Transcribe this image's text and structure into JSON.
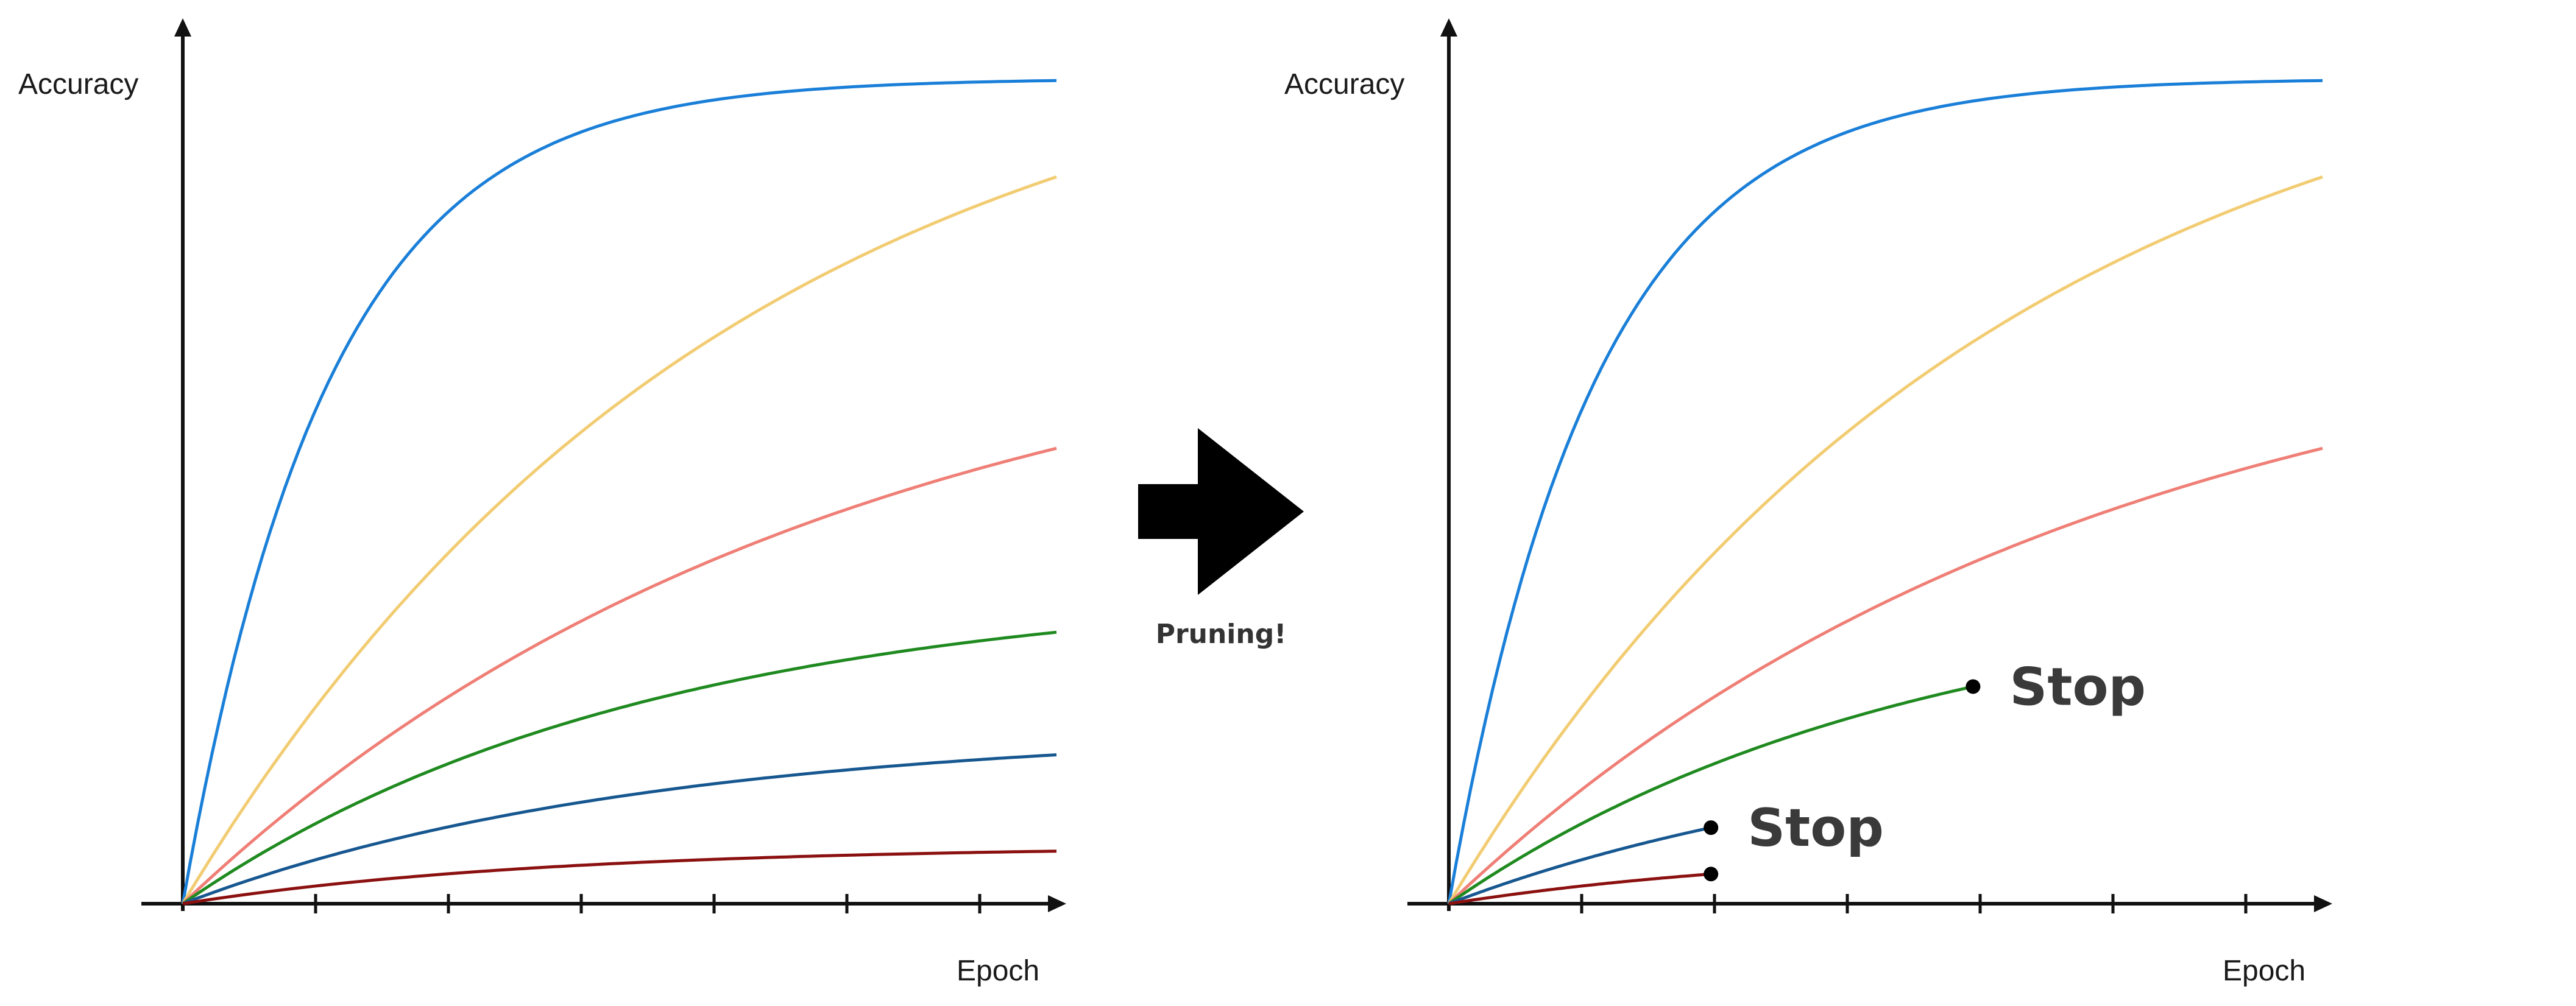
{
  "colors": {
    "axis": "#111111",
    "blue": "#1a7fd8",
    "yellow": "#f2cc72",
    "salmon": "#ef7f76",
    "green": "#1f8a1f",
    "darkblue": "#175790",
    "darkred": "#8b1010",
    "arrow": "#000000"
  },
  "left_chart": {
    "ylabel": "Accuracy",
    "xlabel": "Epoch",
    "tick_count": 6,
    "curves": [
      {
        "name": "blue",
        "color": "blue",
        "final": 0.94,
        "shape": 6.0
      },
      {
        "name": "yellow",
        "color": "yellow",
        "final": 0.83,
        "shape": 1.6
      },
      {
        "name": "salmon",
        "color": "salmon",
        "final": 0.52,
        "shape": 1.35
      },
      {
        "name": "green",
        "color": "green",
        "final": 0.31,
        "shape": 1.9
      },
      {
        "name": "darkblue",
        "color": "darkblue",
        "final": 0.17,
        "shape": 1.9
      },
      {
        "name": "darkred",
        "color": "darkred",
        "final": 0.06,
        "shape": 2.4
      }
    ]
  },
  "arrow": {
    "label": "Pruning!"
  },
  "right_chart": {
    "ylabel": "Accuracy",
    "xlabel": "Epoch",
    "tick_count": 6,
    "curves": [
      {
        "name": "blue",
        "color": "blue",
        "final": 0.94,
        "shape": 6.0,
        "stop": null
      },
      {
        "name": "yellow",
        "color": "yellow",
        "final": 0.83,
        "shape": 1.6,
        "stop": null
      },
      {
        "name": "salmon",
        "color": "salmon",
        "final": 0.52,
        "shape": 1.35,
        "stop": null
      },
      {
        "name": "green",
        "color": "green",
        "final": 0.31,
        "shape": 1.9,
        "stop": 0.6,
        "label": "Stop"
      },
      {
        "name": "darkblue",
        "color": "darkblue",
        "final": 0.17,
        "shape": 1.9,
        "stop": 0.3,
        "label": "Stop"
      },
      {
        "name": "darkred",
        "color": "darkred",
        "final": 0.06,
        "shape": 2.4,
        "stop": 0.3,
        "label": ""
      }
    ]
  }
}
